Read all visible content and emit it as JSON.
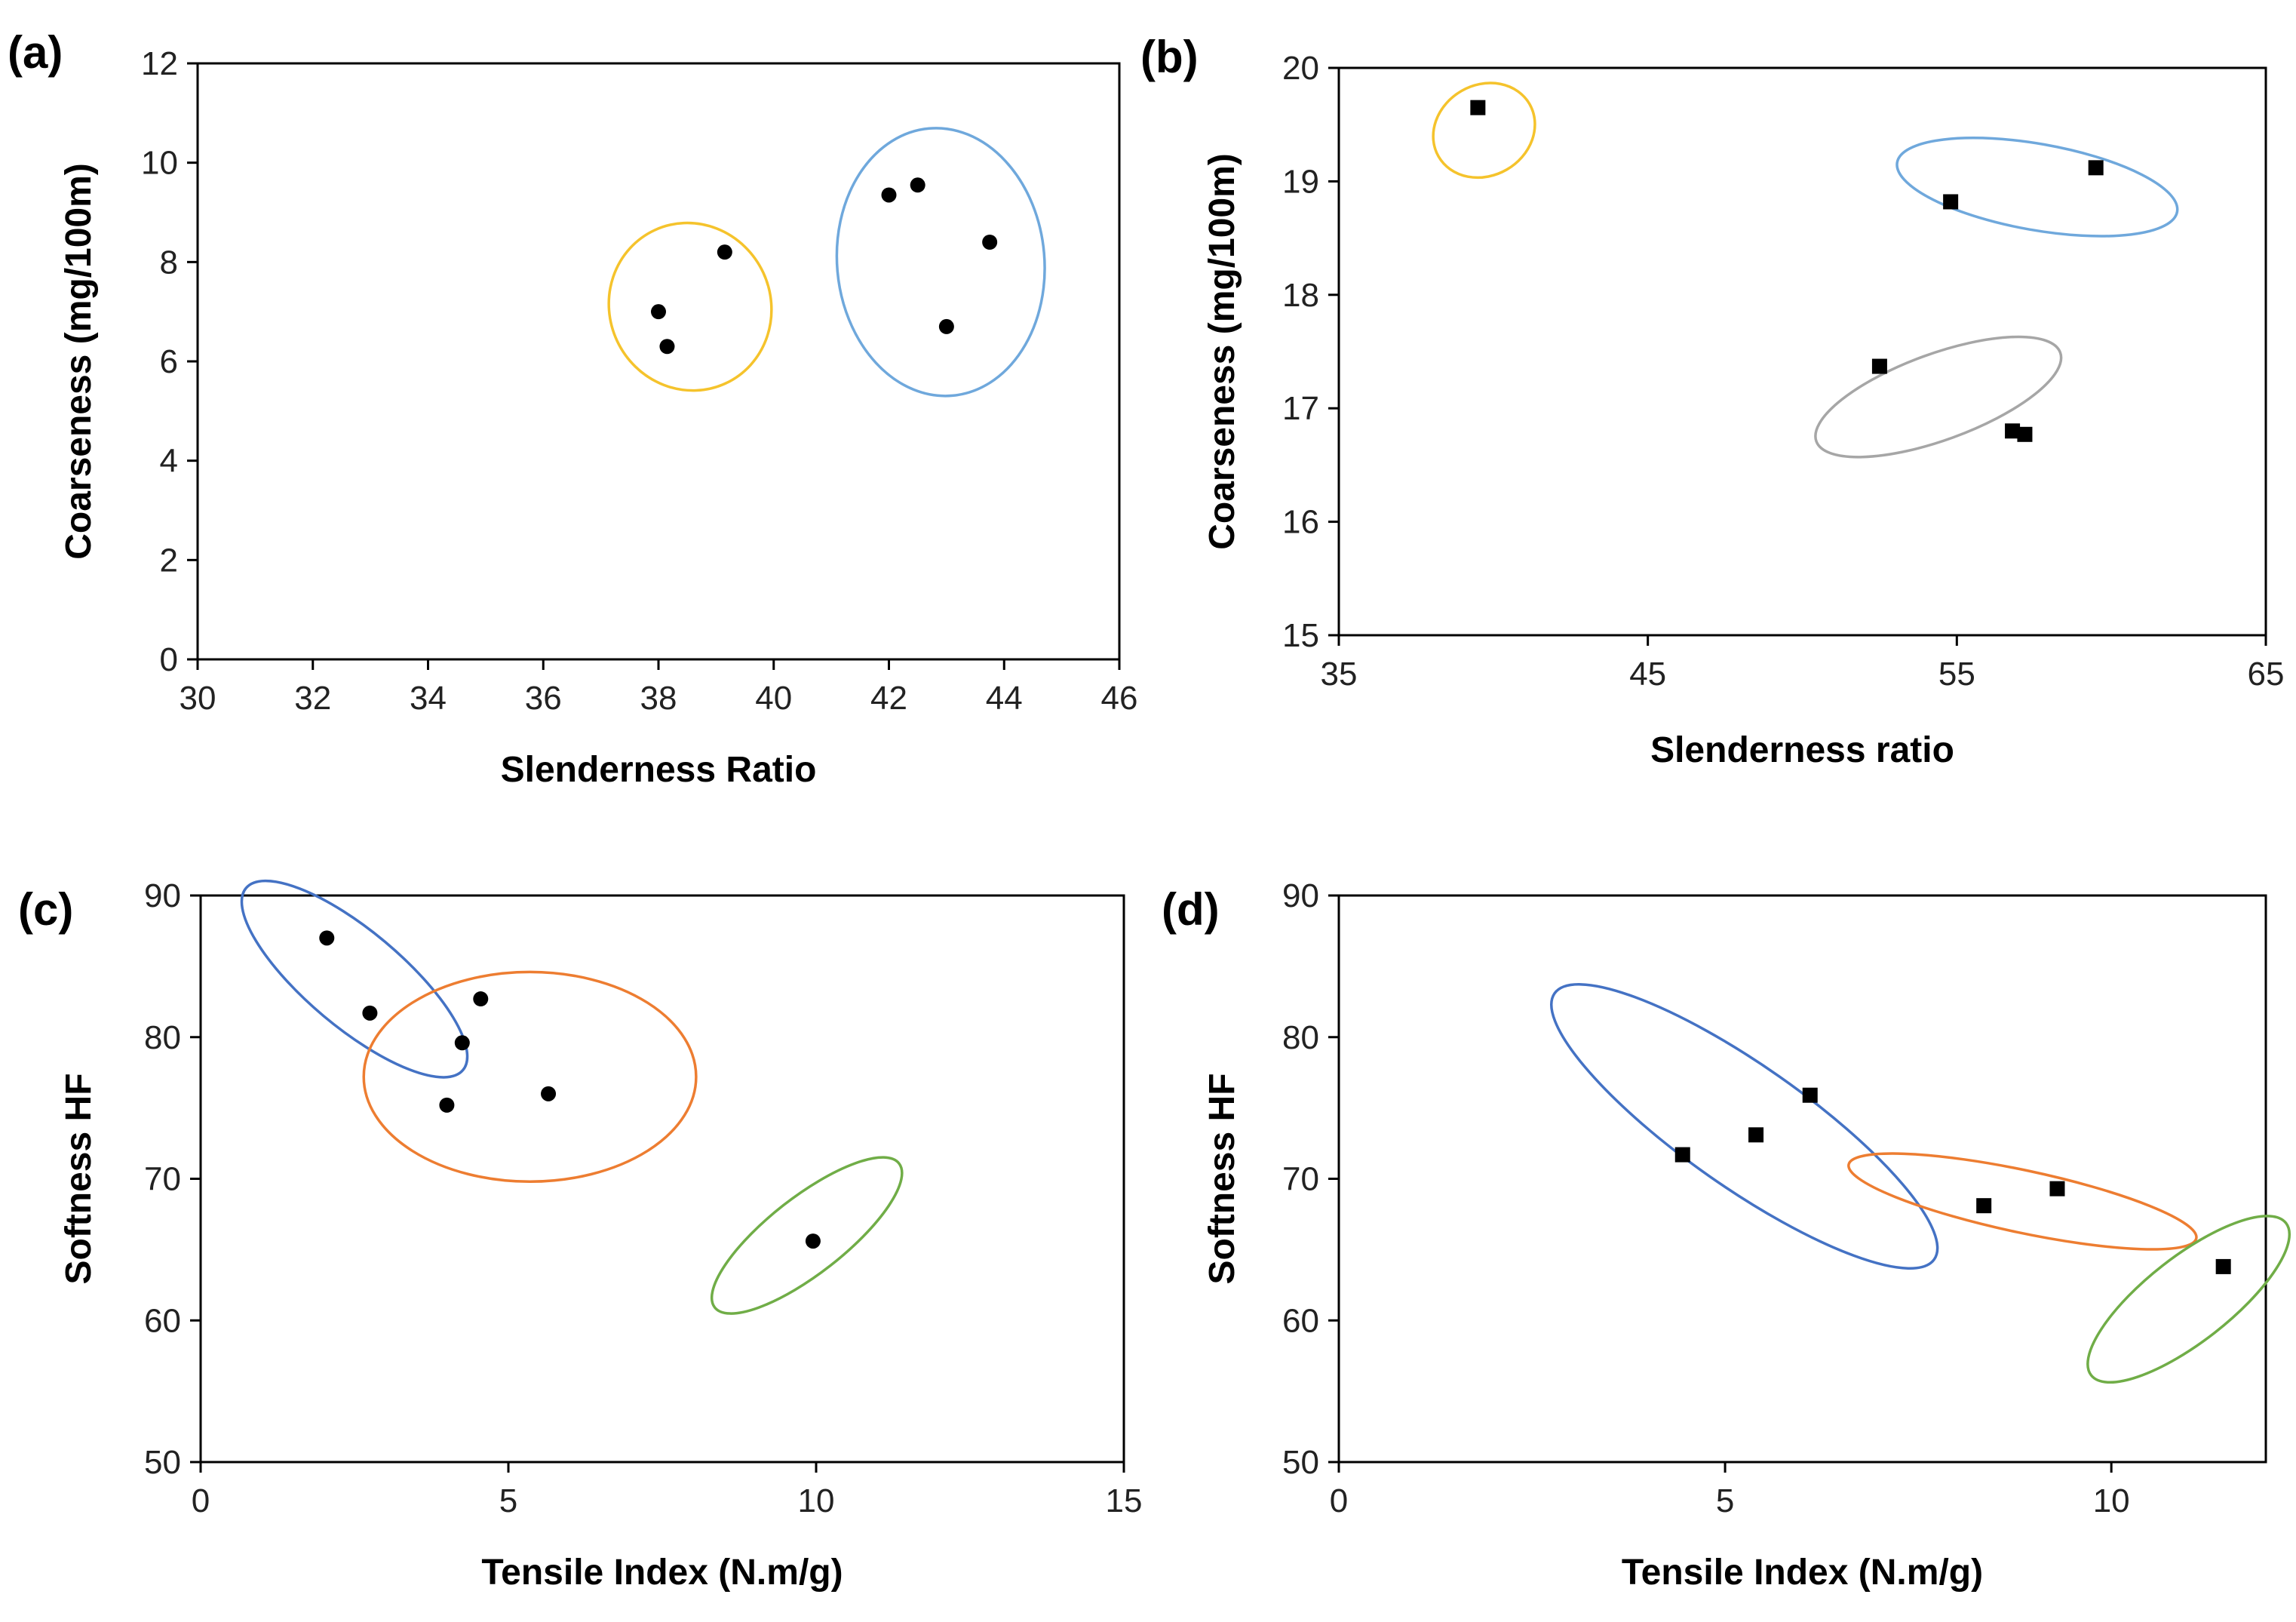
{
  "chart_data": [
    {
      "panel_label": "(a)",
      "type": "scatter",
      "marker": "circle",
      "xlabel": "Slenderness Ratio",
      "ylabel": "Coarseness (mg/100m)",
      "xlim": [
        30,
        46
      ],
      "ylim": [
        0,
        12
      ],
      "xticks": [
        30,
        32,
        34,
        36,
        38,
        40,
        42,
        44,
        46
      ],
      "yticks": [
        0,
        2,
        4,
        6,
        8,
        10,
        12
      ],
      "points": [
        {
          "x": 38.0,
          "y": 7.0
        },
        {
          "x": 38.15,
          "y": 6.3
        },
        {
          "x": 39.15,
          "y": 8.2
        },
        {
          "x": 42.0,
          "y": 9.35
        },
        {
          "x": 42.5,
          "y": 9.55
        },
        {
          "x": 43.75,
          "y": 8.4
        },
        {
          "x": 43.0,
          "y": 6.7
        }
      ],
      "clusters": [
        {
          "color": "#F5C32C",
          "cx": 38.55,
          "cy": 7.1,
          "rx": 1.4,
          "ry": 1.7,
          "angle": 25
        },
        {
          "color": "#6FA8DC",
          "cx": 42.9,
          "cy": 8.0,
          "rx": 1.8,
          "ry": 2.7,
          "angle": 5
        }
      ]
    },
    {
      "panel_label": "(b)",
      "type": "scatter",
      "marker": "square",
      "xlabel": "Slenderness ratio",
      "ylabel": "Coarseness (mg/100m)",
      "xlim": [
        35,
        65
      ],
      "ylim": [
        15,
        20
      ],
      "xticks": [
        35,
        45,
        55,
        65
      ],
      "yticks": [
        15,
        16,
        17,
        18,
        19,
        20
      ],
      "points": [
        {
          "x": 39.5,
          "y": 19.65
        },
        {
          "x": 54.8,
          "y": 18.82
        },
        {
          "x": 59.5,
          "y": 19.12
        },
        {
          "x": 52.5,
          "y": 17.37
        },
        {
          "x": 56.8,
          "y": 16.8
        },
        {
          "x": 57.2,
          "y": 16.77
        }
      ],
      "clusters": [
        {
          "color": "#F5C32C",
          "cx": 39.7,
          "cy": 19.45,
          "rx": 1.7,
          "ry": 0.4,
          "angle": 30
        },
        {
          "color": "#6FA8DC",
          "cx": 57.6,
          "cy": 18.95,
          "rx": 4.6,
          "ry": 0.38,
          "angle": -10
        },
        {
          "color": "#A6A6A6",
          "cx": 54.4,
          "cy": 17.1,
          "rx": 4.2,
          "ry": 0.38,
          "angle": 20
        }
      ]
    },
    {
      "panel_label": "(c)",
      "type": "scatter",
      "marker": "circle",
      "xlabel": "Tensile Index (N.m/g)",
      "ylabel": "Softness HF",
      "xlim": [
        0,
        15
      ],
      "ylim": [
        50,
        90
      ],
      "xticks": [
        0,
        5,
        10,
        15
      ],
      "yticks": [
        50,
        60,
        70,
        80,
        90
      ],
      "points": [
        {
          "x": 2.05,
          "y": 87.0
        },
        {
          "x": 2.75,
          "y": 81.7
        },
        {
          "x": 4.55,
          "y": 82.7
        },
        {
          "x": 4.25,
          "y": 79.6
        },
        {
          "x": 4.0,
          "y": 75.2
        },
        {
          "x": 5.65,
          "y": 76.0
        },
        {
          "x": 9.95,
          "y": 65.6
        }
      ],
      "clusters": [
        {
          "color": "#4472C4",
          "cx": 2.5,
          "cy": 84.1,
          "rx": 2.3,
          "ry": 3.4,
          "angle": -40
        },
        {
          "color": "#ED7D31",
          "cx": 5.35,
          "cy": 77.2,
          "rx": 2.7,
          "ry": 7.4,
          "angle": 0
        },
        {
          "color": "#70AD47",
          "cx": 9.85,
          "cy": 66.0,
          "rx": 1.9,
          "ry": 2.7,
          "angle": 38
        }
      ]
    },
    {
      "panel_label": "(d)",
      "type": "scatter",
      "marker": "square",
      "xlabel": "Tensile Index (N.m/g)",
      "ylabel": "Softness HF",
      "xlim": [
        0,
        12
      ],
      "ylim": [
        50,
        90
      ],
      "xticks": [
        0,
        5,
        10
      ],
      "yticks": [
        50,
        60,
        70,
        80,
        90
      ],
      "points": [
        {
          "x": 4.45,
          "y": 71.7
        },
        {
          "x": 5.4,
          "y": 73.1
        },
        {
          "x": 6.1,
          "y": 75.9
        },
        {
          "x": 8.35,
          "y": 68.1
        },
        {
          "x": 9.3,
          "y": 69.3
        },
        {
          "x": 11.45,
          "y": 63.8
        }
      ],
      "clusters": [
        {
          "color": "#4472C4",
          "cx": 5.25,
          "cy": 73.7,
          "rx": 3.0,
          "ry": 4.3,
          "angle": -35
        },
        {
          "color": "#ED7D31",
          "cx": 8.85,
          "cy": 68.4,
          "rx": 2.3,
          "ry": 2.2,
          "angle": -12
        },
        {
          "color": "#70AD47",
          "cx": 11.0,
          "cy": 61.5,
          "rx": 1.6,
          "ry": 3.0,
          "angle": 38
        }
      ]
    }
  ]
}
